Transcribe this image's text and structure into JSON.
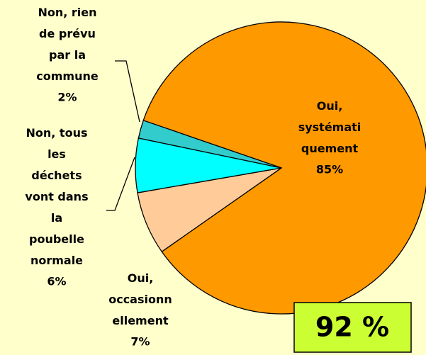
{
  "chart_data": {
    "type": "pie",
    "categories": [
      "Oui,\nsystémati\nquement",
      "Oui,\noccasionn\nellement",
      "Non, tous\nles\ndéchets\nvont dans\nla\npoubelle\nnormale",
      "Non,  rien\nde prévu\npar la\ncommune"
    ],
    "values": [
      85,
      7,
      6,
      2
    ],
    "value_labels": [
      "85%",
      "7%",
      "6%",
      "2%"
    ],
    "colors": [
      "#ff9900",
      "#ffcc99",
      "#00ffff",
      "#33cccc"
    ],
    "annotation": "92 %"
  }
}
